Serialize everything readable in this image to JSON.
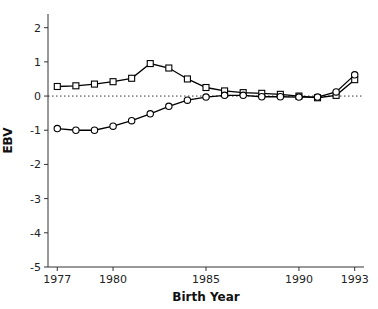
{
  "chart_data": {
    "type": "line",
    "x": [
      1977,
      1978,
      1979,
      1980,
      1981,
      1982,
      1983,
      1984,
      1985,
      1986,
      1987,
      1988,
      1989,
      1990,
      1991,
      1992,
      1993
    ],
    "series": [
      {
        "color": "#000000",
        "marker": "square",
        "line_style": "solid",
        "values": [
          0.28,
          0.3,
          0.35,
          0.42,
          0.52,
          0.95,
          0.82,
          0.5,
          0.25,
          0.15,
          0.1,
          0.08,
          0.05,
          0.0,
          -0.05,
          0.02,
          0.48
        ]
      },
      {
        "color": "#000000",
        "marker": "circle",
        "line_style": "solid",
        "values": [
          -0.95,
          -1.0,
          -1.0,
          -0.88,
          -0.72,
          -0.52,
          -0.3,
          -0.12,
          -0.03,
          0.02,
          0.02,
          -0.02,
          -0.02,
          -0.03,
          -0.03,
          0.12,
          0.62
        ]
      }
    ],
    "hline": 0,
    "xlim": [
      1976.5,
      1993.5
    ],
    "ylim": [
      -5,
      2.4
    ],
    "xticks": [
      1977,
      1980,
      1985,
      1990,
      1993
    ],
    "yticks": [
      -5,
      -4,
      -3,
      -2,
      -1,
      0,
      1,
      2
    ],
    "xlabel": "Birth Year",
    "ylabel": "EBV",
    "grid": false
  }
}
